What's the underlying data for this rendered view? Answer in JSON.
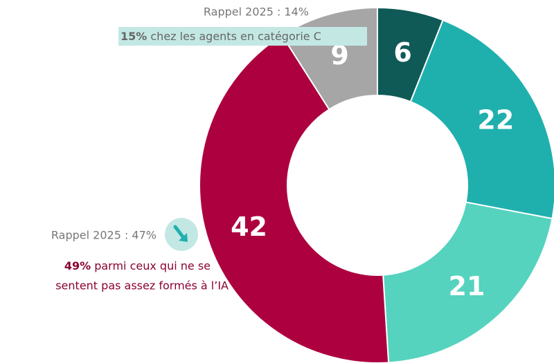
{
  "chart_data": {
    "type": "donut",
    "values": [
      6,
      22,
      21,
      42,
      9
    ],
    "colors": [
      "#0f5a57",
      "#1fb0ae",
      "#55d3bf",
      "#ad003f",
      "#a6a6a6"
    ],
    "annotations": [
      {
        "recall": "Rappel 2025 : 14%",
        "bold": "15%",
        "lines": [
          " chez les agents en catégorie C"
        ]
      },
      {
        "recall": "Rappel 2025 : 47%",
        "bold": "49%",
        "lines": [
          " parmi ceux qui ne se",
          "sentent pas assez formés à l’IA"
        ]
      }
    ]
  }
}
